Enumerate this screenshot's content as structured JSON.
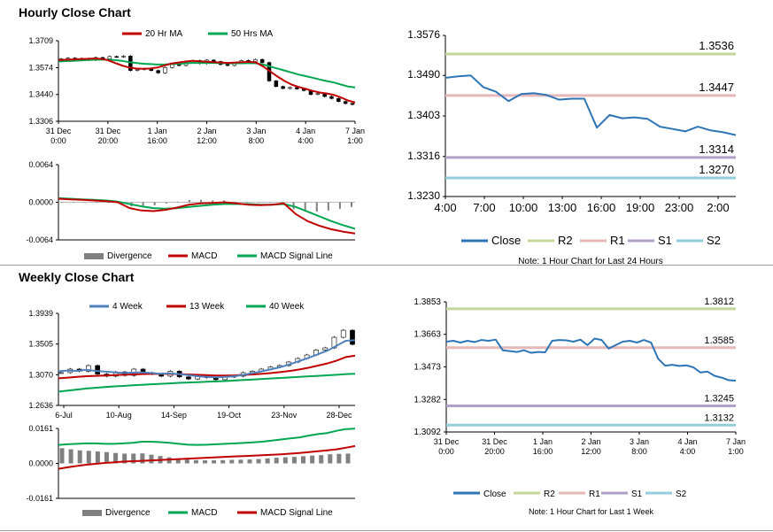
{
  "sections": {
    "hourly_title": "Hourly Close Chart",
    "weekly_title": "Weekly Close Chart"
  },
  "colors": {
    "ma20": "#c00000",
    "ma50": "#00a651",
    "macd_red": "#c00000",
    "signal_green": "#00a651",
    "close_blue": "#2e75b6",
    "r2": "#c4d79b",
    "r1": "#e6b8b7",
    "s1": "#b1a0c7",
    "s2": "#92cddc",
    "week4": "#4f81bd",
    "week13": "#c00000",
    "week40": "#00a651",
    "divergence": "#808080"
  },
  "chart_data": [
    {
      "id": "hourly_price",
      "type": "candlestick",
      "title": "",
      "legend": [
        "20 Hr MA",
        "50 Hrs MA"
      ],
      "y_ticks": [
        "1.3709",
        "1.3574",
        "1.3440",
        "1.3306"
      ],
      "ylim": [
        1.3306,
        1.3709
      ],
      "x_ticks": [
        [
          "31 Dec",
          "0:00"
        ],
        [
          "31 Dec",
          "20:00"
        ],
        [
          "1 Jan",
          "16:00"
        ],
        [
          "2 Jan",
          "12:00"
        ],
        [
          "3 Jan",
          "8:00"
        ],
        [
          "4 Jan",
          "4:00"
        ],
        [
          "7 Jan",
          "1:00"
        ]
      ],
      "close": [
        1.3618,
        1.3622,
        1.3615,
        1.362,
        1.3612,
        1.3625,
        1.3618,
        1.363,
        1.3628,
        1.3632,
        1.356,
        1.3565,
        1.357,
        1.356,
        1.3548,
        1.3575,
        1.359,
        1.3585,
        1.36,
        1.361,
        1.3595,
        1.3612,
        1.3605,
        1.359,
        1.3585,
        1.3598,
        1.361,
        1.3605,
        1.3615,
        1.36,
        1.3508,
        1.348,
        1.347,
        1.3475,
        1.3468,
        1.346,
        1.344,
        1.3445,
        1.343,
        1.342,
        1.3405,
        1.3395,
        1.339
      ],
      "ma20": [
        1.3612,
        1.3614,
        1.3615,
        1.3617,
        1.3618,
        1.362,
        1.3618,
        1.3612,
        1.3598,
        1.3585,
        1.3575,
        1.357,
        1.3568,
        1.357,
        1.3575,
        1.3585,
        1.3595,
        1.36,
        1.3605,
        1.3608,
        1.3606,
        1.3604,
        1.3602,
        1.36,
        1.3598,
        1.36,
        1.3602,
        1.3603,
        1.36,
        1.358,
        1.3555,
        1.353,
        1.3508,
        1.349,
        1.3478,
        1.3468,
        1.3458,
        1.345,
        1.3445,
        1.3438,
        1.3425,
        1.341,
        1.34
      ],
      "ma50": [
        1.3605,
        1.3607,
        1.3608,
        1.361,
        1.3612,
        1.3614,
        1.3615,
        1.3614,
        1.3612,
        1.3608,
        1.3602,
        1.3598,
        1.3594,
        1.3592,
        1.359,
        1.359,
        1.3592,
        1.3594,
        1.3596,
        1.3598,
        1.3598,
        1.3598,
        1.3598,
        1.3597,
        1.3596,
        1.3596,
        1.3596,
        1.3597,
        1.3596,
        1.359,
        1.358,
        1.357,
        1.356,
        1.355,
        1.354,
        1.3532,
        1.3524,
        1.3515,
        1.3507,
        1.35,
        1.349,
        1.348,
        1.3475
      ]
    },
    {
      "id": "hourly_macd",
      "type": "line+bar",
      "legend": [
        "Divergence",
        "MACD",
        "MACD Signal Line"
      ],
      "y_ticks": [
        "0.0064",
        "0.0000",
        "-0.0064"
      ],
      "ylim": [
        -0.0064,
        0.0064
      ],
      "macd": [
        0.0006,
        0.0005,
        0.0004,
        0.0003,
        0.0002,
        0.0,
        -0.001,
        -0.0014,
        -0.0015,
        -0.0013,
        -0.0009,
        -0.0004,
        -0.0002,
        -0.0001,
        0.0,
        -0.0002,
        -0.0004,
        -0.0005,
        -0.0004,
        -0.0002,
        -0.002,
        -0.0032,
        -0.004,
        -0.0046,
        -0.005,
        -0.0053
      ],
      "signal": [
        0.0007,
        0.0006,
        0.0005,
        0.0004,
        0.0003,
        0.0001,
        -0.0003,
        -0.0007,
        -0.001,
        -0.0011,
        -0.001,
        -0.0008,
        -0.0006,
        -0.0004,
        -0.0003,
        -0.0003,
        -0.0003,
        -0.0004,
        -0.0004,
        -0.0003,
        -0.0008,
        -0.0016,
        -0.0024,
        -0.0032,
        -0.0039,
        -0.0045
      ],
      "divergence": [
        -0.0001,
        -0.0001,
        -0.0001,
        -0.0001,
        -0.0001,
        -0.0001,
        -0.0007,
        -0.0007,
        -0.0005,
        -0.0002,
        0.0001,
        0.0004,
        0.0004,
        0.0003,
        0.0003,
        0.0001,
        -0.0001,
        -0.0001,
        0.0,
        0.0001,
        -0.0012,
        -0.0016,
        -0.0016,
        -0.0014,
        -0.0011,
        -0.0008
      ]
    },
    {
      "id": "hourly_24h",
      "type": "line",
      "y_ticks": [
        "1.3576",
        "1.3490",
        "1.3403",
        "1.3316",
        "1.3230"
      ],
      "ylim": [
        1.323,
        1.3576
      ],
      "x_ticks": [
        "4:00",
        "7:00",
        "10:00",
        "13:00",
        "16:00",
        "19:00",
        "23:00",
        "2:00"
      ],
      "close": [
        1.3485,
        1.3488,
        1.349,
        1.3465,
        1.3455,
        1.3435,
        1.345,
        1.3452,
        1.3448,
        1.3438,
        1.344,
        1.344,
        1.3378,
        1.3405,
        1.3398,
        1.34,
        1.3397,
        1.338,
        1.3375,
        1.337,
        1.338,
        1.3372,
        1.3368,
        1.3362
      ],
      "levels": {
        "R2": "1.3536",
        "R1": "1.3447",
        "S1": "1.3314",
        "S2": "1.3270"
      },
      "legend": [
        "Close",
        "R2",
        "R1",
        "S1",
        "S2"
      ],
      "note": "Note: 1 Hour Chart for Last 24 Hours"
    },
    {
      "id": "weekly_price",
      "type": "candlestick",
      "legend": [
        "4 Week",
        "13 Week",
        "40 Week"
      ],
      "y_ticks": [
        "1.3939",
        "1.3505",
        "1.3070",
        "1.2636"
      ],
      "ylim": [
        1.2636,
        1.3939
      ],
      "x_ticks": [
        "6-Jul",
        "10-Aug",
        "14-Sep",
        "19-Oct",
        "23-Nov",
        "28-Dec"
      ],
      "close": [
        1.31,
        1.315,
        1.312,
        1.32,
        1.308,
        1.305,
        1.311,
        1.306,
        1.315,
        1.31,
        1.308,
        1.305,
        1.312,
        1.304,
        1.301,
        1.305,
        1.303,
        1.3,
        1.304,
        1.305,
        1.31,
        1.312,
        1.315,
        1.318,
        1.32,
        1.325,
        1.33,
        1.335,
        1.342,
        1.345,
        1.36,
        1.37,
        1.35
      ],
      "week4": [
        1.312,
        1.313,
        1.3125,
        1.314,
        1.3125,
        1.3115,
        1.3105,
        1.3095,
        1.31,
        1.3105,
        1.3095,
        1.3085,
        1.309,
        1.308,
        1.3065,
        1.305,
        1.304,
        1.3035,
        1.304,
        1.305,
        1.307,
        1.3095,
        1.312,
        1.315,
        1.318,
        1.322,
        1.3265,
        1.331,
        1.336,
        1.341,
        1.348,
        1.355,
        1.356
      ],
      "week13": [
        1.302,
        1.303,
        1.304,
        1.305,
        1.3055,
        1.306,
        1.3065,
        1.307,
        1.3075,
        1.308,
        1.3082,
        1.3082,
        1.3082,
        1.308,
        1.3075,
        1.307,
        1.3065,
        1.306,
        1.306,
        1.3062,
        1.3068,
        1.3075,
        1.3085,
        1.3095,
        1.311,
        1.3125,
        1.3145,
        1.317,
        1.32,
        1.323,
        1.327,
        1.332,
        1.334
      ],
      "week40": [
        1.283,
        1.2845,
        1.286,
        1.2875,
        1.2885,
        1.2895,
        1.2905,
        1.2912,
        1.292,
        1.2928,
        1.2935,
        1.2942,
        1.2948,
        1.2955,
        1.296,
        1.2965,
        1.297,
        1.2975,
        1.298,
        1.2988,
        1.2995,
        1.3002,
        1.301,
        1.3018,
        1.3025,
        1.3032,
        1.304,
        1.3048,
        1.3055,
        1.3062,
        1.307,
        1.308,
        1.3085
      ]
    },
    {
      "id": "weekly_macd",
      "type": "line+bar",
      "legend": [
        "Divergence",
        "MACD",
        "MACD Signal Line"
      ],
      "y_ticks": [
        "0.0161",
        "0.0000",
        "-0.0161"
      ],
      "ylim": [
        -0.0161,
        0.0161
      ],
      "macd": [
        0.0085,
        0.0088,
        0.009,
        0.0092,
        0.0092,
        0.009,
        0.009,
        0.0092,
        0.0095,
        0.01,
        0.01,
        0.0098,
        0.0095,
        0.009,
        0.0086,
        0.0085,
        0.0086,
        0.0088,
        0.009,
        0.0092,
        0.0094,
        0.0097,
        0.01,
        0.0105,
        0.011,
        0.0115,
        0.012,
        0.0128,
        0.0135,
        0.014,
        0.015,
        0.0158,
        0.016
      ],
      "signal": [
        -0.0025,
        -0.0018,
        -0.0012,
        -0.0006,
        -0.0002,
        0.0002,
        0.0005,
        0.0008,
        0.001,
        0.0012,
        0.0014,
        0.0016,
        0.0018,
        0.002,
        0.0022,
        0.0024,
        0.0026,
        0.0028,
        0.003,
        0.0032,
        0.0034,
        0.0036,
        0.0038,
        0.004,
        0.0042,
        0.0045,
        0.0048,
        0.0052,
        0.0056,
        0.006,
        0.0065,
        0.0072,
        0.008
      ],
      "divergence": [
        0.007,
        0.0065,
        0.006,
        0.0058,
        0.0055,
        0.0052,
        0.0048,
        0.0045,
        0.0045,
        0.0046,
        0.004,
        0.0034,
        0.0028,
        0.0022,
        0.0018,
        0.0015,
        0.0014,
        0.0014,
        0.0015,
        0.0016,
        0.0017,
        0.0018,
        0.002,
        0.0023,
        0.0026,
        0.0028,
        0.003,
        0.0033,
        0.0036,
        0.0038,
        0.0042,
        0.0044,
        0.0045
      ]
    },
    {
      "id": "weekly_1week",
      "type": "line",
      "y_ticks": [
        "1.3853",
        "1.3663",
        "1.3473",
        "1.3282",
        "1.3092"
      ],
      "ylim": [
        1.3092,
        1.3853
      ],
      "x_ticks": [
        [
          "31 Dec",
          "0:00"
        ],
        [
          "31 Dec",
          "20:00"
        ],
        [
          "1 Jan",
          "16:00"
        ],
        [
          "2 Jan",
          "12:00"
        ],
        [
          "3 Jan",
          "8:00"
        ],
        [
          "4 Jan",
          "4:00"
        ],
        [
          "7 Jan",
          "1:00"
        ]
      ],
      "close": [
        1.362,
        1.3625,
        1.3615,
        1.3625,
        1.3618,
        1.363,
        1.3625,
        1.3632,
        1.357,
        1.3565,
        1.356,
        1.357,
        1.3555,
        1.356,
        1.3558,
        1.3625,
        1.363,
        1.3628,
        1.362,
        1.3632,
        1.36,
        1.3638,
        1.363,
        1.358,
        1.36,
        1.362,
        1.3625,
        1.3615,
        1.363,
        1.3615,
        1.352,
        1.348,
        1.3485,
        1.3478,
        1.3482,
        1.347,
        1.344,
        1.3445,
        1.342,
        1.341,
        1.3395,
        1.3392
      ],
      "levels": {
        "R2": "1.3812",
        "R1": "1.3585",
        "S1": "1.3245",
        "S2": "1.3132"
      },
      "legend": [
        "Close",
        "R2",
        "R1",
        "S1",
        "S2"
      ],
      "note": "Note: 1 Hour Chart for Last 1 Week"
    }
  ]
}
